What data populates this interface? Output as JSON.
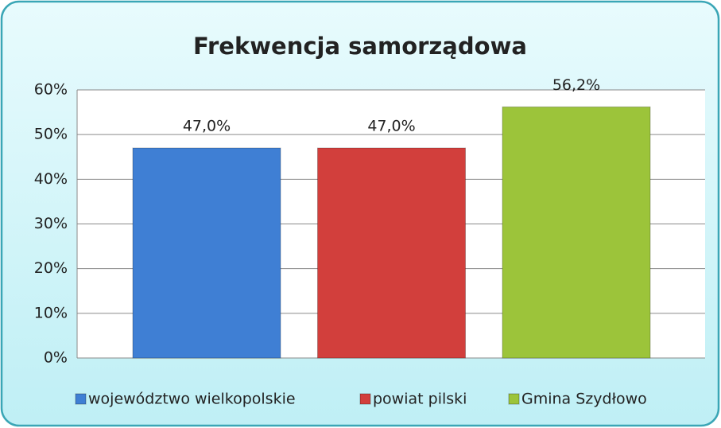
{
  "chart_data": {
    "type": "bar",
    "title": "Frekwencja samorządowa",
    "series": [
      {
        "name": "województwo wielkopolskie",
        "color": "#3f7fd4",
        "values": [
          47.0
        ],
        "value_labels": [
          "47,0%"
        ]
      },
      {
        "name": "powiat pilski",
        "color": "#d23f3c",
        "values": [
          47.0
        ],
        "value_labels": [
          "47,0%"
        ]
      },
      {
        "name": "Gmina Szydłowo",
        "color": "#9cc43a",
        "values": [
          56.2
        ],
        "value_labels": [
          "56,2%"
        ]
      }
    ],
    "ylim": [
      0,
      60
    ],
    "yticks": [
      {
        "value": 0,
        "label": "0%"
      },
      {
        "value": 10,
        "label": "10%"
      },
      {
        "value": 20,
        "label": "20%"
      },
      {
        "value": 30,
        "label": "30%"
      },
      {
        "value": 40,
        "label": "40%"
      },
      {
        "value": 50,
        "label": "50%"
      },
      {
        "value": 60,
        "label": "60%"
      }
    ],
    "grid": true,
    "legend": "bottom"
  }
}
